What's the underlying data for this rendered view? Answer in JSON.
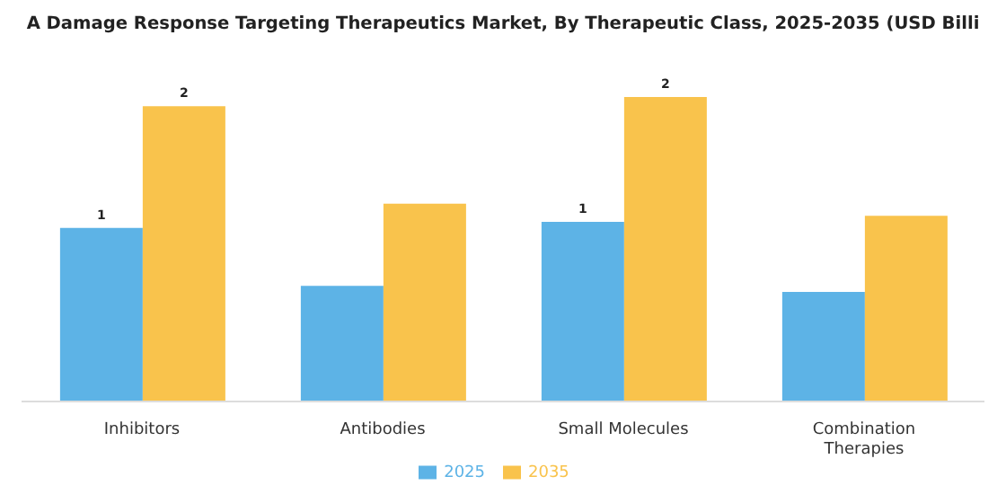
{
  "chart_data": {
    "type": "bar",
    "title": "A Damage Response Targeting Therapeutics Market, By Therapeutic Class, 2025-2035 (USD Billi",
    "categories": [
      "Inhibitors",
      "Antibodies",
      "Small Molecules",
      "Combination Therapies"
    ],
    "series": [
      {
        "name": "2025",
        "color": "#5db3e6",
        "values": [
          1.14,
          0.76,
          1.18,
          0.72
        ],
        "value_labels": [
          "1",
          null,
          "1",
          null
        ]
      },
      {
        "name": "2035",
        "color": "#f9c34c",
        "values": [
          1.94,
          1.3,
          2.0,
          1.22
        ],
        "value_labels": [
          "2",
          null,
          "2",
          null
        ]
      }
    ],
    "legend": "bottom"
  }
}
